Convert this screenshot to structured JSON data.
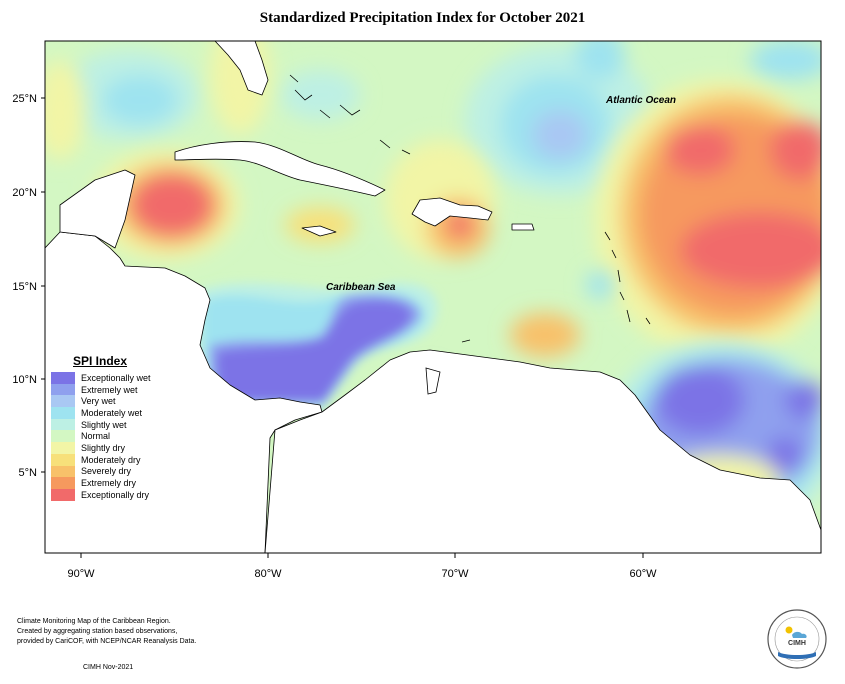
{
  "title": "Standardized Precipitation Index for October 2021",
  "map": {
    "lat_ticks": [
      "25°N",
      "20°N",
      "15°N",
      "10°N",
      "5°N"
    ],
    "lon_ticks": [
      "90°W",
      "80°W",
      "70°W",
      "60°W"
    ],
    "labels": {
      "ocean": "Atlantic Ocean",
      "sea": "Caribbean Sea"
    }
  },
  "legend": {
    "title": "SPI Index",
    "items": [
      {
        "label": "Exceptionally wet",
        "color": "#7b73e6"
      },
      {
        "label": "Extremely wet",
        "color": "#8fa0ee"
      },
      {
        "label": "Very wet",
        "color": "#a9c8f3"
      },
      {
        "label": "Moderately wet",
        "color": "#9ee3f0"
      },
      {
        "label": "Slightly wet",
        "color": "#bdf0e4"
      },
      {
        "label": "Normal",
        "color": "#d3f7c3"
      },
      {
        "label": "Slightly dry",
        "color": "#f2f5a6"
      },
      {
        "label": "Moderately dry",
        "color": "#f7e07a"
      },
      {
        "label": "Severely dry",
        "color": "#f8c16a"
      },
      {
        "label": "Extremely dry",
        "color": "#f6995e"
      },
      {
        "label": "Exceptionally dry",
        "color": "#f16a6a"
      }
    ]
  },
  "footer": {
    "line1": "Climate Monitoring Map of the Caribbean Region.",
    "line2": "Created by aggregating station based observations,",
    "line3": "provided by CariCOF, with NCEP/NCAR Reanalysis Data.",
    "date": "CIMH Nov-2021"
  },
  "logo": {
    "text": "CIMH",
    "icon": "sun-cloud-icon"
  }
}
